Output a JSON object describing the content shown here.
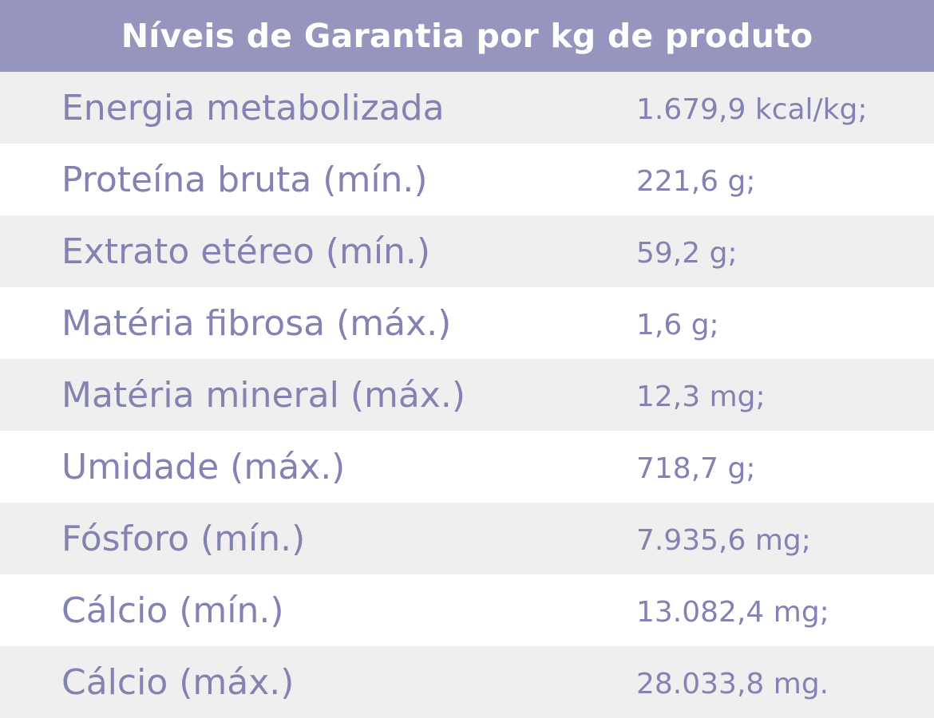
{
  "header": {
    "title": "Níveis de Garantia por kg de produto"
  },
  "table": {
    "rows": [
      [
        "Energia metabolizada",
        "1.679,9 kcal/kg;"
      ],
      [
        "Proteína bruta (mín.)",
        "221,6 g;"
      ],
      [
        "Extrato etéreo (mín.)",
        "59,2 g;"
      ],
      [
        "Matéria fibrosa (máx.)",
        "1,6 g;"
      ],
      [
        "Matéria mineral (máx.)",
        "12,3 mg;"
      ],
      [
        "Umidade (máx.)",
        "718,7 g;"
      ],
      [
        "Fósforo (mín.)",
        "7.935,6 mg;"
      ],
      [
        "Cálcio (mín.)",
        "13.082,4 mg;"
      ],
      [
        "Cálcio (máx.)",
        "28.033,8 mg."
      ]
    ]
  }
}
